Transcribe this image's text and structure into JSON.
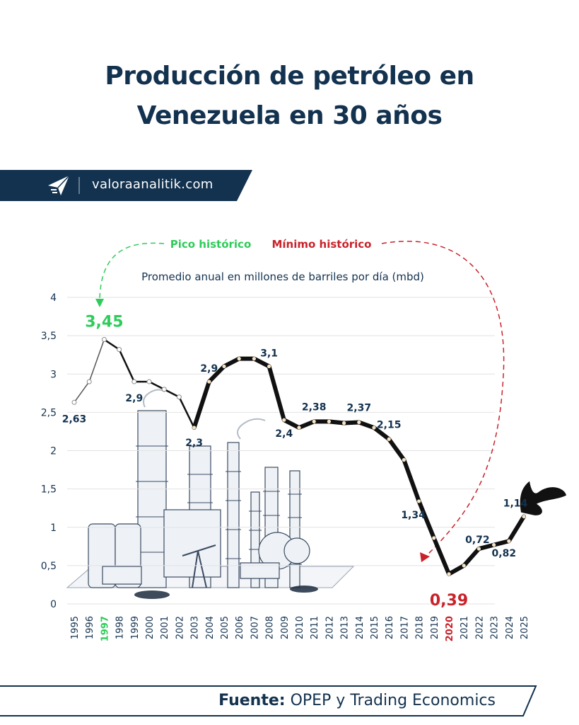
{
  "header": {
    "title_line1": "Producción de petróleo en",
    "title_line2": "Venezuela en 30 años"
  },
  "brand": {
    "site": "valoraanalitik.com",
    "logo_icon": "paper-plane-icon",
    "banner_color": "#13324f"
  },
  "footer": {
    "source_label": "Fuente:",
    "source_text": "OPEP y Trading Economics"
  },
  "chart_data": {
    "type": "line",
    "subtitle": "Promedio anual en millones de barriles por día (mbd)",
    "annotations": {
      "peak_label": "Pico histórico",
      "min_label": "Mínimo histórico",
      "peak_color": "#2ecc5a",
      "min_color": "#c8232c"
    },
    "ylim": [
      0,
      4
    ],
    "yticks": [
      "0",
      "0,5",
      "1",
      "1,5",
      "2",
      "2,5",
      "3",
      "3,5",
      "4"
    ],
    "grid": true,
    "categories": [
      "1995",
      "1996",
      "1997",
      "1998",
      "1999",
      "2000",
      "2001",
      "2002",
      "2003",
      "2004",
      "2005",
      "2006",
      "2007",
      "2008",
      "2009",
      "2010",
      "2011",
      "2012",
      "2013",
      "2014",
      "2015",
      "2016",
      "2017",
      "2018",
      "2019",
      "2020",
      "2021",
      "2022",
      "2023",
      "2024",
      "2025"
    ],
    "values": [
      2.63,
      2.9,
      3.45,
      3.32,
      2.9,
      2.9,
      2.8,
      2.7,
      2.3,
      2.9,
      3.1,
      3.2,
      3.2,
      3.1,
      2.4,
      2.3,
      2.38,
      2.38,
      2.36,
      2.37,
      2.3,
      2.15,
      1.88,
      1.34,
      0.86,
      0.39,
      0.5,
      0.72,
      0.77,
      0.82,
      1.14
    ],
    "data_labels": [
      {
        "year": "1995",
        "text": "2,63"
      },
      {
        "year": "1997",
        "text": "3,45"
      },
      {
        "year": "1999",
        "text": "2,9"
      },
      {
        "year": "2003",
        "text": "2,3"
      },
      {
        "year": "2004",
        "text": "2,9"
      },
      {
        "year": "2008",
        "text": "3,1"
      },
      {
        "year": "2009",
        "text": "2,4"
      },
      {
        "year": "2011",
        "text": "2,38"
      },
      {
        "year": "2014",
        "text": "2,37"
      },
      {
        "year": "2016",
        "text": "2,15"
      },
      {
        "year": "2018",
        "text": "1,34"
      },
      {
        "year": "2020",
        "text": "0,39"
      },
      {
        "year": "2022",
        "text": "0,72"
      },
      {
        "year": "2024",
        "text": "0,82"
      },
      {
        "year": "2025",
        "text": "1,14"
      }
    ],
    "highlight_years": {
      "peak": "1997",
      "min": "2020"
    },
    "line_color": "#111111",
    "thin_line_color": "#555555",
    "grid_color": "#e2e2e2",
    "text_color": "#13324f"
  }
}
